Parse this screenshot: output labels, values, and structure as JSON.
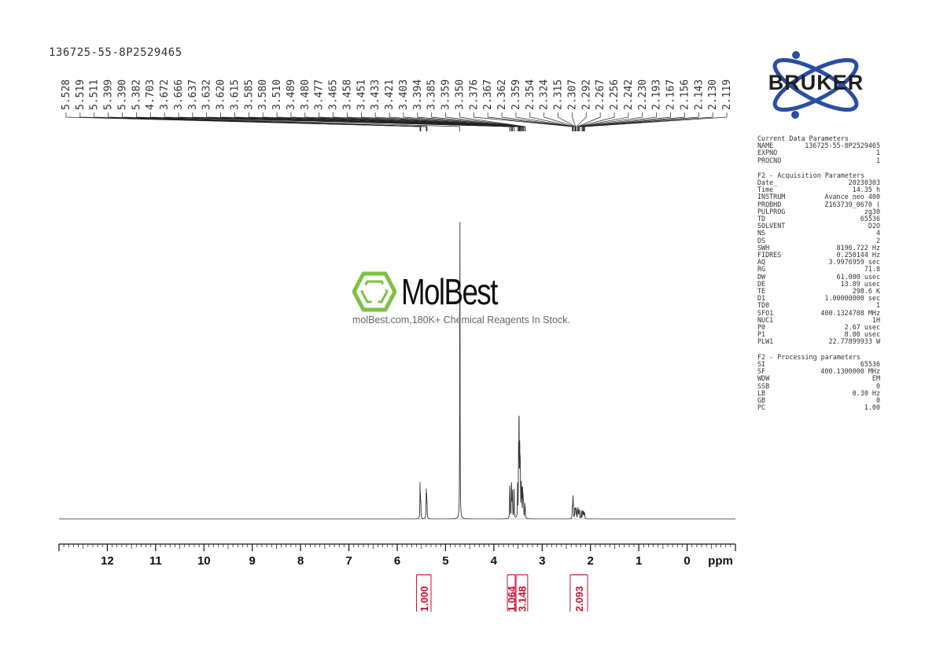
{
  "sample_id": "136725-55-8P2529465",
  "watermark": {
    "brand": "MolBest",
    "tagline": "molBest.com,180K+ Chemical Reagents In Stock.",
    "accent_color": "#7cc242"
  },
  "logo": {
    "text": "BRUKER",
    "orbit_color": "#2b4ea2",
    "icon": "atom-orbit-icon"
  },
  "chart_data": {
    "type": "line",
    "title": "",
    "xlabel": "ppm",
    "ylabel": "",
    "x_reversed": true,
    "xlim": [
      13.0,
      -1.0
    ],
    "x_ticks": [
      "12",
      "11",
      "10",
      "9",
      "8",
      "7",
      "6",
      "5",
      "4",
      "3",
      "2",
      "1",
      "0"
    ],
    "peak_labels": [
      "5.528",
      "5.519",
      "5.511",
      "5.399",
      "5.390",
      "5.382",
      "4.703",
      "3.672",
      "3.666",
      "3.637",
      "3.632",
      "3.620",
      "3.615",
      "3.585",
      "3.580",
      "3.510",
      "3.489",
      "3.480",
      "3.477",
      "3.465",
      "3.458",
      "3.451",
      "3.433",
      "3.421",
      "3.403",
      "3.394",
      "3.385",
      "3.359",
      "3.350",
      "2.376",
      "2.367",
      "2.362",
      "2.359",
      "2.354",
      "2.324",
      "2.315",
      "2.307",
      "2.292",
      "2.267",
      "2.256",
      "2.242",
      "2.230",
      "2.193",
      "2.167",
      "2.156",
      "2.143",
      "2.130",
      "2.119"
    ],
    "peaks": [
      {
        "ppm": 5.528,
        "height": 0.1
      },
      {
        "ppm": 5.519,
        "height": 0.06
      },
      {
        "ppm": 5.511,
        "height": 0.04
      },
      {
        "ppm": 5.399,
        "height": 0.09
      },
      {
        "ppm": 5.39,
        "height": 0.06
      },
      {
        "ppm": 5.382,
        "height": 0.04
      },
      {
        "ppm": 4.703,
        "height": 1.0
      },
      {
        "ppm": 3.672,
        "height": 0.08
      },
      {
        "ppm": 3.666,
        "height": 0.07
      },
      {
        "ppm": 3.637,
        "height": 0.08
      },
      {
        "ppm": 3.632,
        "height": 0.07
      },
      {
        "ppm": 3.62,
        "height": 0.06
      },
      {
        "ppm": 3.615,
        "height": 0.05
      },
      {
        "ppm": 3.585,
        "height": 0.07
      },
      {
        "ppm": 3.58,
        "height": 0.06
      },
      {
        "ppm": 3.51,
        "height": 0.1
      },
      {
        "ppm": 3.489,
        "height": 0.18
      },
      {
        "ppm": 3.48,
        "height": 0.19
      },
      {
        "ppm": 3.477,
        "height": 0.17
      },
      {
        "ppm": 3.465,
        "height": 0.17
      },
      {
        "ppm": 3.458,
        "height": 0.14
      },
      {
        "ppm": 3.451,
        "height": 0.12
      },
      {
        "ppm": 3.433,
        "height": 0.1
      },
      {
        "ppm": 3.421,
        "height": 0.09
      },
      {
        "ppm": 3.403,
        "height": 0.08
      },
      {
        "ppm": 3.394,
        "height": 0.06
      },
      {
        "ppm": 3.385,
        "height": 0.05
      },
      {
        "ppm": 3.359,
        "height": 0.04
      },
      {
        "ppm": 3.35,
        "height": 0.03
      },
      {
        "ppm": 2.376,
        "height": 0.04
      },
      {
        "ppm": 2.367,
        "height": 0.03
      },
      {
        "ppm": 2.362,
        "height": 0.035
      },
      {
        "ppm": 2.359,
        "height": 0.03
      },
      {
        "ppm": 2.354,
        "height": 0.025
      },
      {
        "ppm": 2.324,
        "height": 0.03
      },
      {
        "ppm": 2.315,
        "height": 0.028
      },
      {
        "ppm": 2.307,
        "height": 0.026
      },
      {
        "ppm": 2.292,
        "height": 0.03
      },
      {
        "ppm": 2.267,
        "height": 0.025
      },
      {
        "ppm": 2.256,
        "height": 0.03
      },
      {
        "ppm": 2.242,
        "height": 0.025
      },
      {
        "ppm": 2.23,
        "height": 0.028
      },
      {
        "ppm": 2.193,
        "height": 0.03
      },
      {
        "ppm": 2.167,
        "height": 0.022
      },
      {
        "ppm": 2.156,
        "height": 0.025
      },
      {
        "ppm": 2.143,
        "height": 0.02
      },
      {
        "ppm": 2.13,
        "height": 0.018
      },
      {
        "ppm": 2.119,
        "height": 0.015
      }
    ],
    "integrals": [
      {
        "from": 5.6,
        "to": 5.3,
        "value": "1.000"
      },
      {
        "from": 3.72,
        "to": 3.56,
        "value": "1.064"
      },
      {
        "from": 3.54,
        "to": 3.3,
        "value": "3.148"
      },
      {
        "from": 2.42,
        "to": 2.06,
        "value": "2.093"
      }
    ],
    "line_color": "#333333",
    "integral_color": "#c8102e"
  },
  "parameters": {
    "groups": [
      {
        "title": "Current Data Parameters",
        "rows": [
          {
            "key": "NAME",
            "value": "136725-55-8P2529465",
            "unit": ""
          },
          {
            "key": "EXPNO",
            "value": "1",
            "unit": ""
          },
          {
            "key": "PROCNO",
            "value": "1",
            "unit": ""
          }
        ]
      },
      {
        "title": "F2 - Acquisition Parameters",
        "rows": [
          {
            "key": "Date_",
            "value": "20230303",
            "unit": ""
          },
          {
            "key": "Time",
            "value": "14.35",
            "unit": "h"
          },
          {
            "key": "INSTRUM",
            "value": "Avance neo 400",
            "unit": ""
          },
          {
            "key": "PROBHD",
            "value": "Z163739_0670 (",
            "unit": ""
          },
          {
            "key": "PULPROG",
            "value": "zg30",
            "unit": ""
          },
          {
            "key": "TD",
            "value": "65536",
            "unit": ""
          },
          {
            "key": "SOLVENT",
            "value": "D2O",
            "unit": ""
          },
          {
            "key": "NS",
            "value": "4",
            "unit": ""
          },
          {
            "key": "DS",
            "value": "2",
            "unit": ""
          },
          {
            "key": "SWH",
            "value": "8196.722",
            "unit": "Hz"
          },
          {
            "key": "FIDRES",
            "value": "0.250144",
            "unit": "Hz"
          },
          {
            "key": "AQ",
            "value": "3.9976959",
            "unit": "sec"
          },
          {
            "key": "RG",
            "value": "71.8",
            "unit": ""
          },
          {
            "key": "DW",
            "value": "61.000",
            "unit": "usec"
          },
          {
            "key": "DE",
            "value": "13.89",
            "unit": "usec"
          },
          {
            "key": "TE",
            "value": "298.6",
            "unit": "K"
          },
          {
            "key": "D1",
            "value": "1.00000000",
            "unit": "sec"
          },
          {
            "key": "TD0",
            "value": "1",
            "unit": ""
          },
          {
            "key": "SFO1",
            "value": "400.1324708",
            "unit": "MHz"
          },
          {
            "key": "NUC1",
            "value": "1H",
            "unit": ""
          },
          {
            "key": "P0",
            "value": "2.67",
            "unit": "usec"
          },
          {
            "key": "P1",
            "value": "8.00",
            "unit": "usec"
          },
          {
            "key": "PLW1",
            "value": "22.77899933",
            "unit": "W"
          }
        ]
      },
      {
        "title": "F2 - Processing parameters",
        "rows": [
          {
            "key": "SI",
            "value": "65536",
            "unit": ""
          },
          {
            "key": "SF",
            "value": "400.1300000",
            "unit": "MHz"
          },
          {
            "key": "WDW",
            "value": "EM",
            "unit": ""
          },
          {
            "key": "SSB",
            "value": "0",
            "unit": ""
          },
          {
            "key": "LB",
            "value": "0.30",
            "unit": "Hz"
          },
          {
            "key": "GB",
            "value": "0",
            "unit": ""
          },
          {
            "key": "PC",
            "value": "1.00",
            "unit": ""
          }
        ]
      }
    ]
  }
}
